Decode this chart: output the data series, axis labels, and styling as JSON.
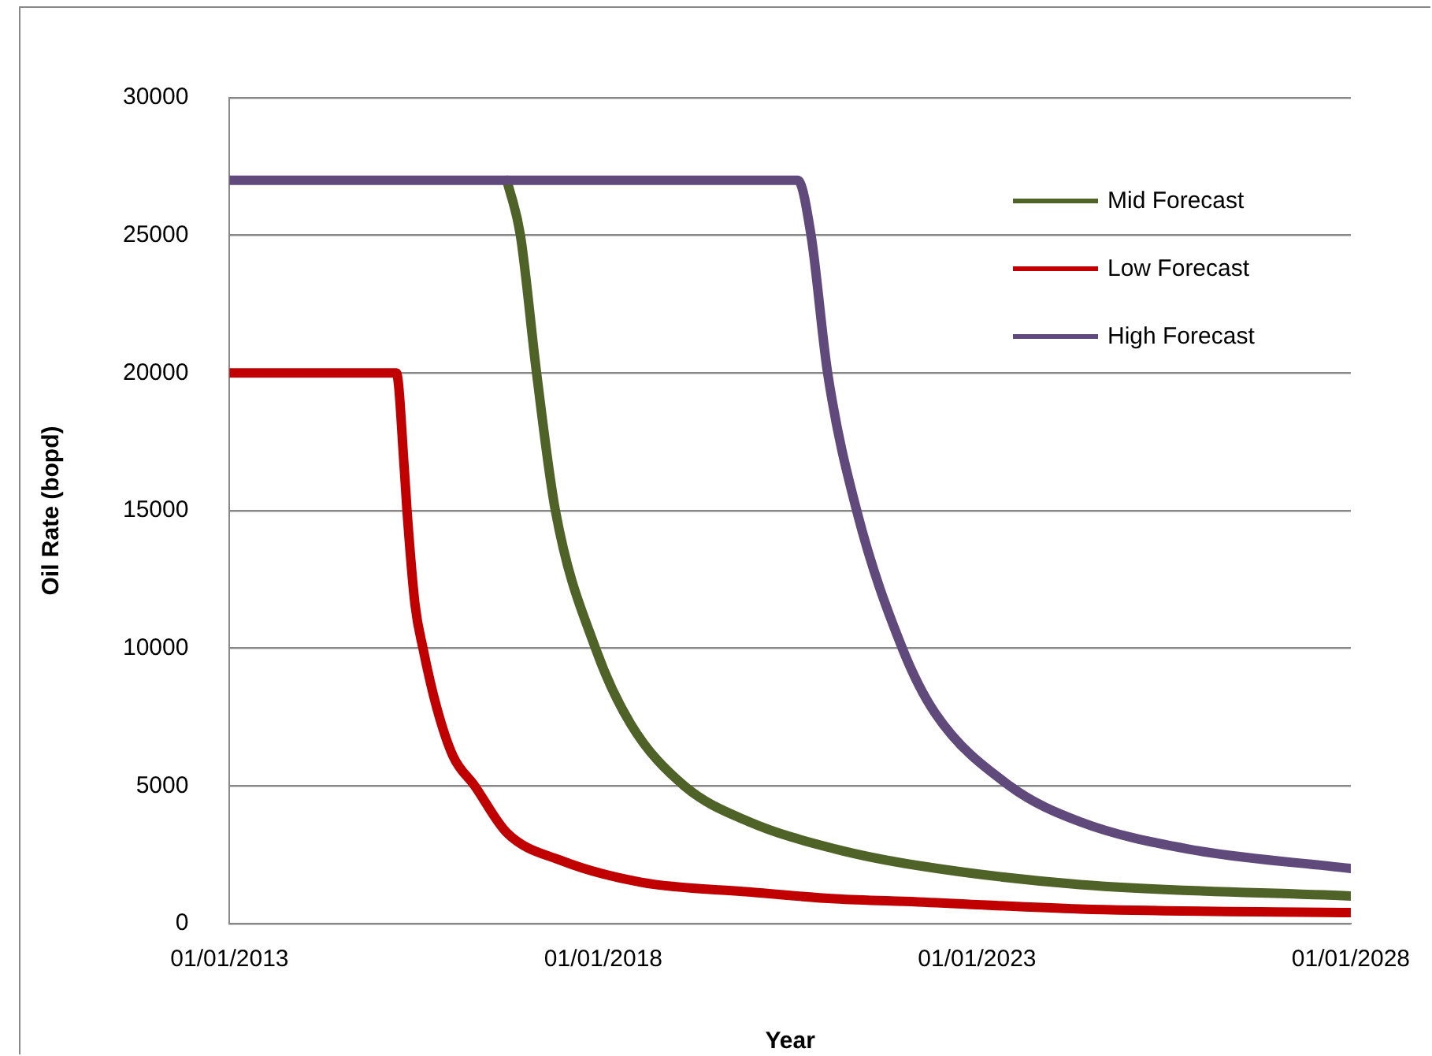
{
  "chart_data": {
    "type": "line",
    "xlabel": "Year",
    "ylabel": "Oil Rate (bopd)",
    "xlim": [
      "2013-01-01",
      "2028-01-01"
    ],
    "xticks": [
      {
        "value": "2013-01-01",
        "label": "01/01/2013"
      },
      {
        "value": "2018-01-01",
        "label": "01/01/2018"
      },
      {
        "value": "2023-01-01",
        "label": "01/01/2023"
      },
      {
        "value": "2028-01-01",
        "label": "01/01/2028"
      }
    ],
    "ylim": [
      0,
      30000
    ],
    "yticks": [
      0,
      5000,
      10000,
      15000,
      20000,
      25000,
      30000
    ],
    "grid": "y",
    "legend": "top right",
    "marker": "none",
    "line_style": "solid",
    "series": [
      {
        "name": "Mid Forecast",
        "color": "#4f6228",
        "x": [
          "2016-09-17",
          "2016-11-22",
          "2017-02-09",
          "2017-05-12",
          "2017-11-24",
          "2018-05-15",
          "2019-02-01",
          "2019-12-14",
          "2021-02-08",
          "2022-03-17",
          "2024-05-18",
          "2028-01-01"
        ],
        "values": [
          27000,
          25000,
          20000,
          15000,
          10000,
          7250,
          5000,
          3700,
          2710,
          2110,
          1420,
          1000
        ]
      },
      {
        "name": "Low Forecast",
        "color": "#c00000",
        "x": [
          "2013-01-01",
          "2015-03-27",
          "2015-05-05",
          "2015-05-18",
          "2015-06-26",
          "2015-08-04",
          "2015-10-10",
          "2015-12-28",
          "2016-04-13",
          "2016-09-17",
          "2017-06-06",
          "2018-07-06",
          "2019-12-14",
          "2021-02-08",
          "2022-03-17",
          "2024-05-18",
          "2028-01-01"
        ],
        "values": [
          20000,
          20000,
          16500,
          15000,
          11600,
          10000,
          7850,
          6100,
          5000,
          3300,
          2300,
          1500,
          1150,
          900,
          790,
          530,
          400
        ]
      },
      {
        "name": "High Forecast",
        "color": "#604a7b",
        "x": [
          "2013-01-01",
          "2020-08-08",
          "2020-10-12",
          "2021-01-01",
          "2021-05-23",
          "2022-01-01",
          "2022-06-10",
          "2023-06-10",
          "2024-05-18",
          "2025-10-27",
          "2028-01-01"
        ],
        "values": [
          27000,
          27000,
          25000,
          20000,
          15000,
          10000,
          7650,
          5000,
          3700,
          2710,
          2000
        ]
      }
    ]
  }
}
